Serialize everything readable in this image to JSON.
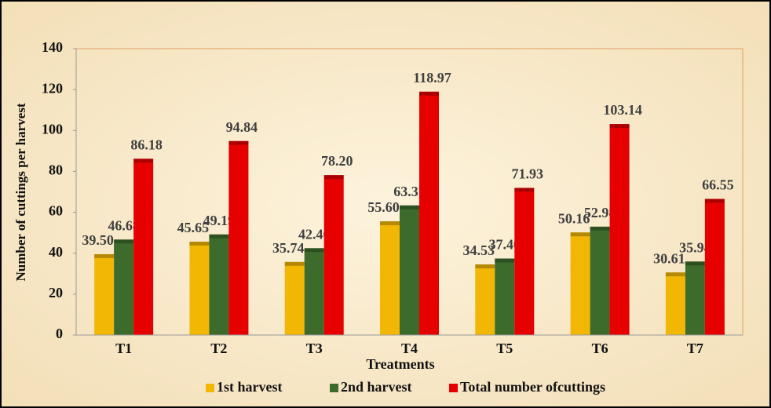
{
  "chart_data": {
    "type": "bar",
    "x_label": "Treatments",
    "y_label": "Number of cuttings per harvest",
    "categories": [
      "T1",
      "T2",
      "T3",
      "T4",
      "T5",
      "T6",
      "T7"
    ],
    "series": [
      {
        "name": "1st harvest",
        "color": "#f2b705",
        "values": [
          39.5,
          45.65,
          35.74,
          55.6,
          34.53,
          50.16,
          30.61
        ],
        "value_labels": [
          "39.50",
          "45.65",
          "35.74",
          "55.60",
          "34.53",
          "50.16",
          "30.61"
        ]
      },
      {
        "name": "2nd harvest",
        "color": "#3d6b2c",
        "values": [
          46.68,
          49.19,
          42.46,
          63.37,
          37.4,
          52.98,
          35.94
        ],
        "value_labels": [
          "46.68",
          "49.19",
          "42.46",
          "63.37",
          "37.40",
          "52.98",
          "35.94"
        ]
      },
      {
        "name": "Total number ofcuttings",
        "color": "#e60000",
        "values": [
          86.18,
          94.84,
          78.2,
          118.97,
          71.93,
          103.14,
          66.55
        ],
        "value_labels": [
          "86.18",
          "94.84",
          "78.20",
          "118.97",
          "71.93",
          "103.14",
          "66.55"
        ]
      }
    ],
    "ylim": [
      0,
      140
    ],
    "yticks": [
      0,
      20,
      40,
      60,
      80,
      100,
      120,
      140
    ],
    "grid": false
  }
}
